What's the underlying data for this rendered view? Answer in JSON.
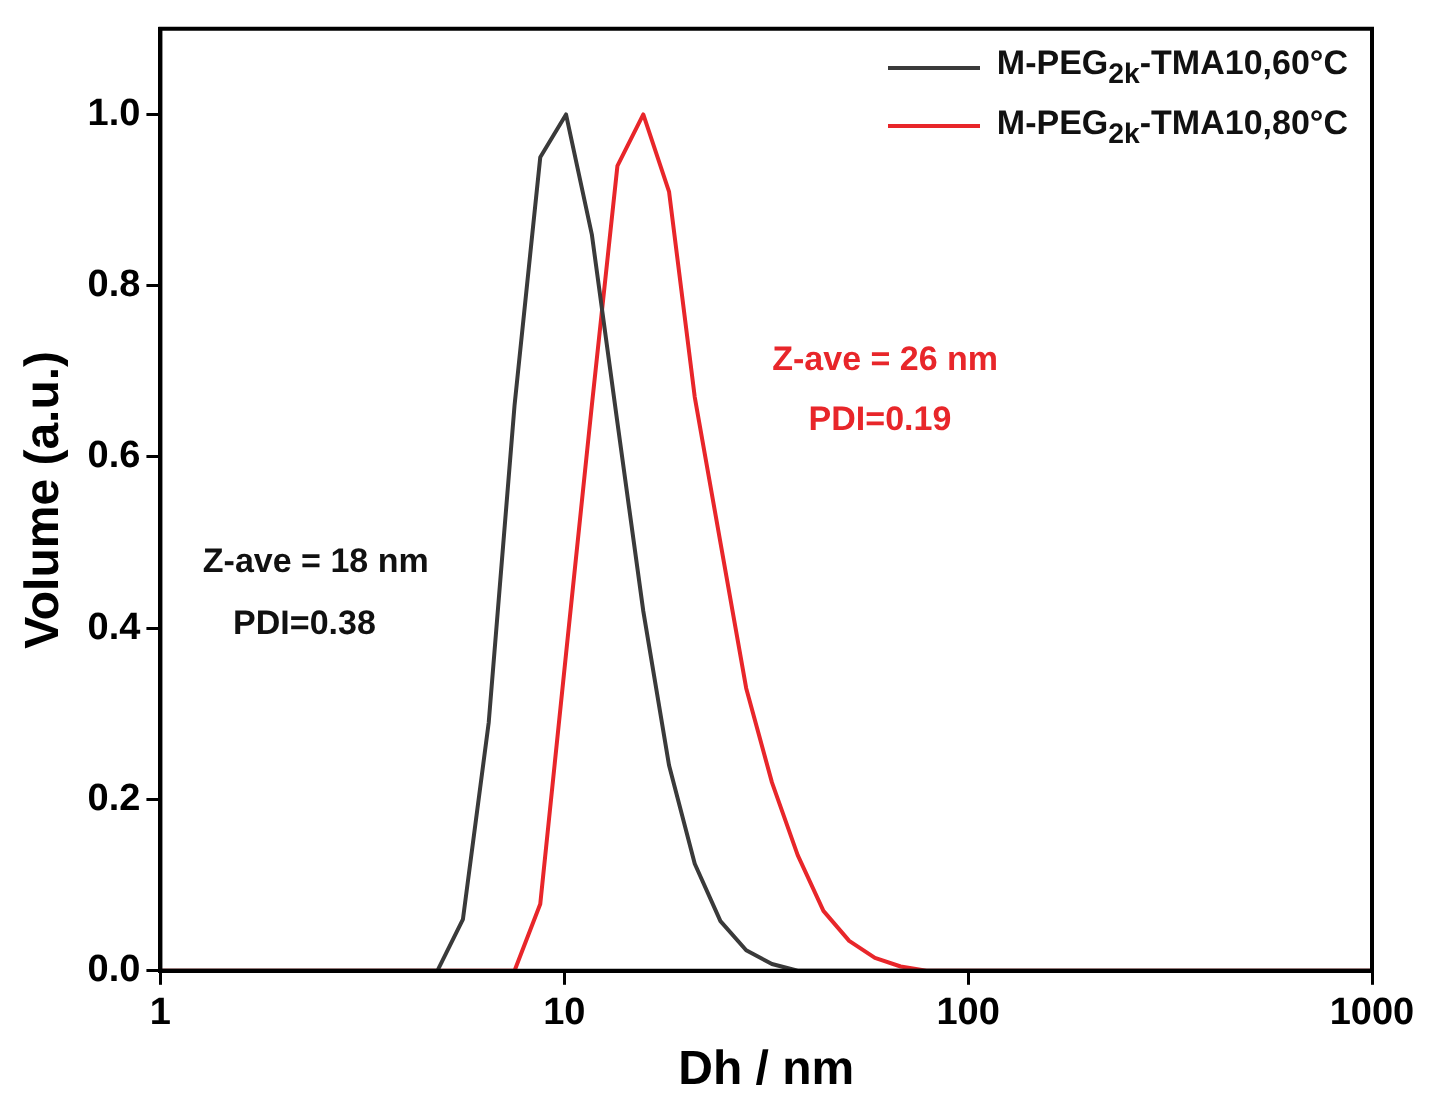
{
  "chart_data": {
    "type": "line",
    "xlabel": "Dh / nm",
    "ylabel": "Volume (a.u.)",
    "log": "x",
    "xlim": [
      1,
      1000
    ],
    "xticks": [
      1,
      10,
      100,
      1000
    ],
    "ylim": [
      0,
      1.1
    ],
    "yticks": [
      {
        "value": 0,
        "label": "0.0"
      },
      {
        "value": 0.2,
        "label": "0.2"
      },
      {
        "value": 0.4,
        "label": "0.4"
      },
      {
        "value": 0.6,
        "label": "0.6"
      },
      {
        "value": 0.8,
        "label": "0.8"
      },
      {
        "value": 1,
        "label": "1.0"
      }
    ],
    "grid": false,
    "legend": "top right",
    "marker": "none",
    "line_style": "solid",
    "annotations": [
      "Z-ave = 18 nm",
      "PDI=0.38",
      "Z-ave = 26 nm",
      "PDI=0.19"
    ],
    "series": [
      {
        "name": "M-PEG$_{2k}$-TMA10,60°C",
        "color": "#3a3a3a",
        "x": [
          1,
          4.85,
          5.61,
          6.5,
          7.53,
          8.72,
          10.1,
          11.7,
          13.54,
          15.69,
          18.17,
          21.04,
          24.36,
          28.21,
          32.67,
          37.84,
          1000
        ],
        "values": [
          0,
          0,
          0.06,
          0.29,
          0.66,
          0.95,
          1.0,
          0.86,
          0.64,
          0.42,
          0.24,
          0.125,
          0.058,
          0.024,
          0.008,
          0,
          0
        ]
      },
      {
        "name": "M-PEG$_{2k}$-TMA10,80°C",
        "color": "#e8262a",
        "x": [
          1,
          7.53,
          8.72,
          10.1,
          11.7,
          13.54,
          15.69,
          18.17,
          21.04,
          24.36,
          28.21,
          32.67,
          37.84,
          43.82,
          50.75,
          58.77,
          68.06,
          78.82,
          1000
        ],
        "values": [
          0,
          0,
          0.078,
          0.37,
          0.66,
          0.94,
          1.0,
          0.91,
          0.67,
          0.5,
          0.33,
          0.22,
          0.135,
          0.07,
          0.035,
          0.015,
          0.005,
          0,
          0
        ]
      }
    ]
  }
}
